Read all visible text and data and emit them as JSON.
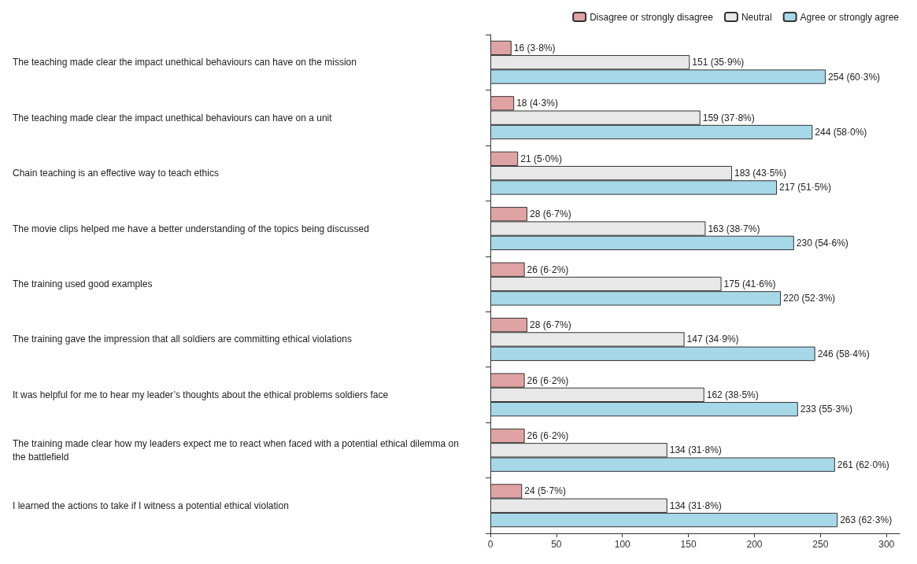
{
  "chart_data": {
    "type": "bar",
    "orientation": "horizontal",
    "legend": "top right",
    "grid": false,
    "categories": [
      "The teaching made clear the impact unethical behaviours can have on the mission",
      "The teaching made clear the impact unethical behaviours can have on a unit",
      "Chain teaching is an effective way to teach ethics",
      "The movie clips helped me have a better understanding of the topics being discussed",
      "The training used good examples",
      "The training gave the impression that all soldiers are committing ethical violations",
      "It was helpful for me to hear my leader’s thoughts about the ethical problems soldiers face",
      "The training made clear how my leaders expect me to react when faced with a potential ethical dilemma on the battlefield",
      "I learned the actions to take if I witness a potential ethical violation"
    ],
    "series": [
      {
        "name": "Disagree or strongly disagree",
        "color": "#e0a3a3",
        "values": [
          16,
          18,
          21,
          28,
          26,
          28,
          26,
          26,
          24
        ],
        "value_labels": [
          "16 (3·8%)",
          "18 (4·3%)",
          "21 (5·0%)",
          "28 (6·7%)",
          "26 (6·2%)",
          "28 (6·7%)",
          "26 (6·2%)",
          "26 (6·2%)",
          "24 (5·7%)"
        ]
      },
      {
        "name": "Neutral",
        "color": "#e8e8e8",
        "values": [
          151,
          159,
          183,
          163,
          175,
          147,
          162,
          134,
          134
        ],
        "value_labels": [
          "151 (35·9%)",
          "159 (37·8%)",
          "183 (43·5%)",
          "163 (38·7%)",
          "175 (41·6%)",
          "147 (34·9%)",
          "162 (38·5%)",
          "134 (31·8%)",
          "134 (31·8%)"
        ]
      },
      {
        "name": "Agree or strongly agree",
        "color": "#a6d8e8",
        "values": [
          254,
          244,
          217,
          230,
          220,
          246,
          233,
          261,
          263
        ],
        "value_labels": [
          "254 (60·3%)",
          "244 (58·0%)",
          "217 (51·5%)",
          "230 (54·6%)",
          "220 (52·3%)",
          "246 (58·4%)",
          "233 (55·3%)",
          "261 (62·0%)",
          "263 (62·3%)"
        ]
      }
    ],
    "xlim": [
      0,
      310
    ],
    "xticks": [
      0,
      50,
      100,
      150,
      200,
      250,
      300
    ]
  }
}
